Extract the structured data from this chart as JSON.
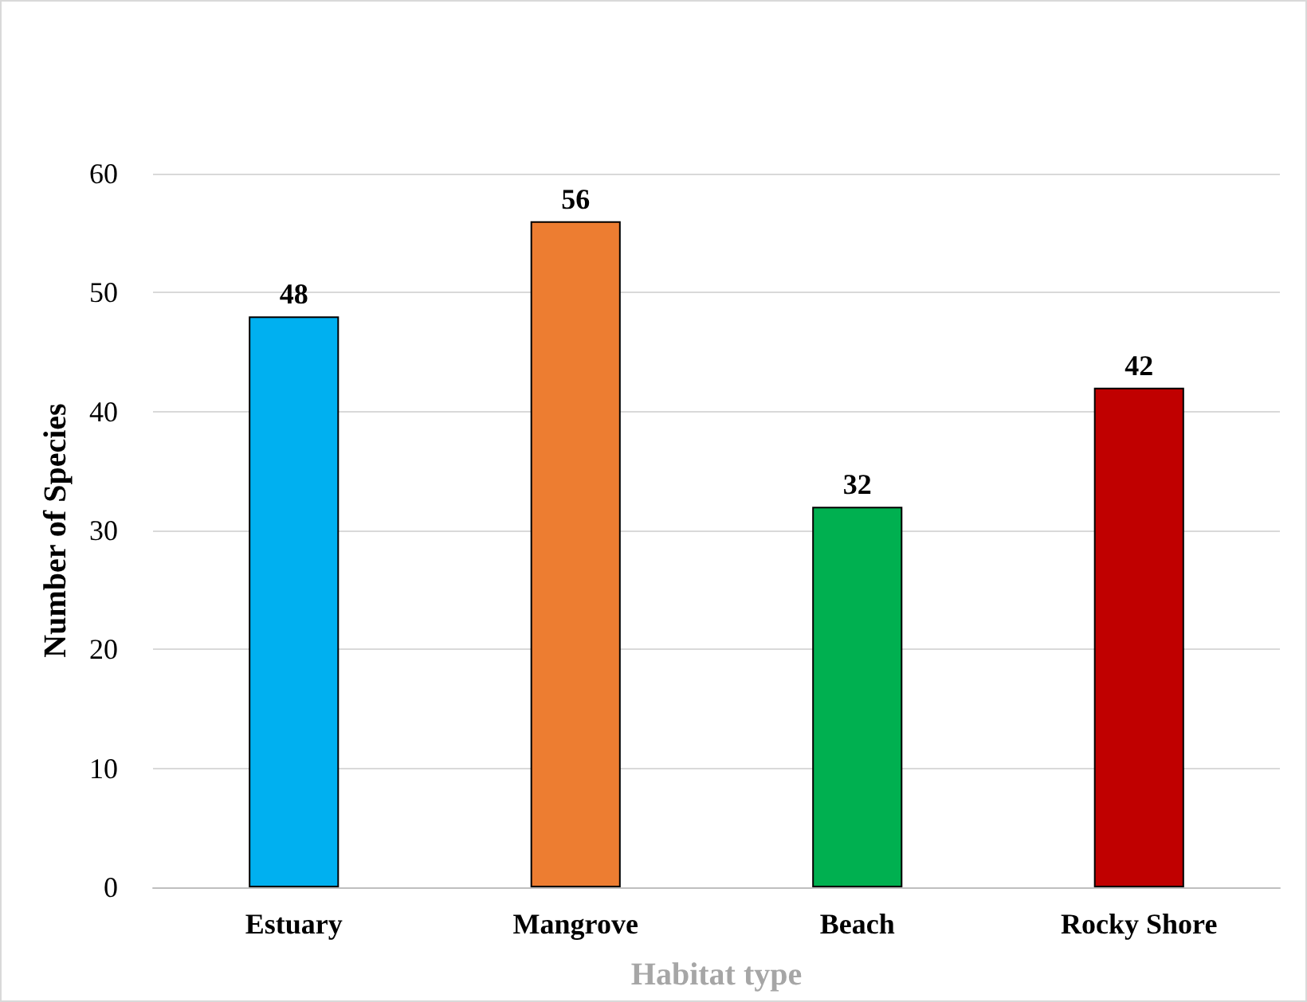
{
  "chart_data": {
    "type": "bar",
    "xlabel": "Habitat type",
    "ylabel": "Number of Species",
    "categories": [
      "Estuary",
      "Mangrove",
      "Beach",
      "Rocky Shore"
    ],
    "values": [
      48,
      56,
      32,
      42
    ],
    "colors": [
      "#00b0f0",
      "#ed7d31",
      "#00b050",
      "#c00000"
    ],
    "ylim": [
      0,
      60
    ],
    "yticks": [
      0,
      10,
      20,
      30,
      40,
      50,
      60
    ],
    "grid": "y",
    "data_labels": true
  }
}
